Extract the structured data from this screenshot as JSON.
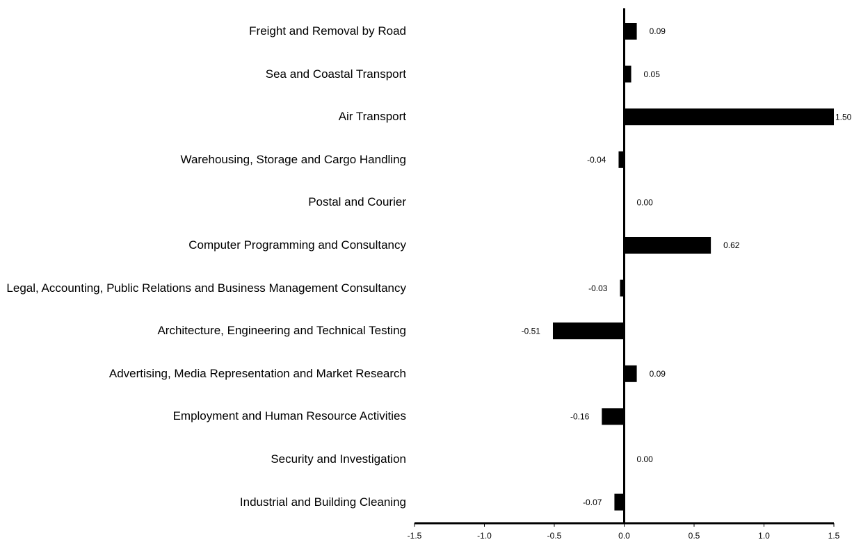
{
  "chart_data": {
    "type": "barh",
    "categories": [
      "Freight and Removal by Road",
      "Sea and Coastal Transport",
      "Air Transport",
      "Warehousing, Storage and Cargo Handling",
      "Postal and Courier",
      "Computer Programming and Consultancy",
      "Legal, Accounting, Public Relations and Business Management Consultancy",
      "Architecture, Engineering and Technical Testing",
      "Advertising, Media Representation and Market Research",
      "Employment and Human Resource Activities",
      "Security and Investigation",
      "Industrial and Building Cleaning"
    ],
    "values": [
      0.09,
      0.05,
      1.5,
      -0.04,
      0,
      0.62,
      -0.03,
      -0.51,
      0.09,
      -0.16,
      0,
      -0.07
    ],
    "value_labels": [
      "0.09",
      "0.05",
      "1.50",
      "-0.04",
      "0.00",
      "0.62",
      "-0.03",
      "-0.51",
      "0.09",
      "-0.16",
      "0.00",
      "-0.07"
    ],
    "color": "#000000",
    "xlim": [
      -1.5,
      1.5
    ],
    "xticks": [
      {
        "value": -1.5,
        "label": "-1.5"
      },
      {
        "value": -1,
        "label": "-1.0"
      },
      {
        "value": -0.5,
        "label": "-0.5"
      },
      {
        "value": 0,
        "label": "0.0"
      },
      {
        "value": 0.5,
        "label": "0.5"
      },
      {
        "value": 1,
        "label": "1.0"
      },
      {
        "value": 1.5,
        "label": "1.5"
      }
    ],
    "grid": false
  }
}
